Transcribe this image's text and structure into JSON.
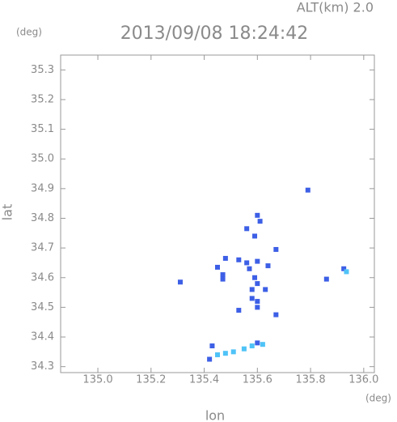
{
  "chart_data": {
    "type": "scatter",
    "title": "2013/09/08 18:24:42",
    "subtitle": "ALT(km) 2.0",
    "y_unit": "(deg)",
    "x_unit": "(deg)",
    "x_label": "lon",
    "y_label": "lat",
    "xlim": [
      134.86,
      136.04
    ],
    "ylim": [
      34.28,
      35.35
    ],
    "xticks": [
      {
        "value": 135,
        "label": "135.0"
      },
      135.2,
      135.4,
      135.6,
      135.8,
      {
        "value": 136,
        "label": "136.0"
      }
    ],
    "yticks": [
      34.3,
      34.4,
      34.5,
      34.6,
      34.7,
      34.8,
      34.9,
      {
        "value": 35,
        "label": "35.0"
      },
      35.1,
      35.2,
      35.3
    ],
    "series": [
      {
        "color": "#3d5fe6",
        "x": [
          135.79,
          135.925,
          135.86,
          135.31,
          135.6,
          135.61,
          135.56,
          135.59,
          135.67,
          135.48,
          135.53,
          135.56,
          135.6,
          135.64,
          135.45,
          135.47,
          135.47,
          135.57,
          135.59,
          135.6,
          135.58,
          135.63,
          135.6,
          135.6,
          135.58,
          135.53,
          135.67,
          135.6,
          135.43,
          135.42
        ],
        "y": [
          34.895,
          34.63,
          34.595,
          34.585,
          34.81,
          34.79,
          34.765,
          34.74,
          34.695,
          34.665,
          34.66,
          34.65,
          34.655,
          34.64,
          34.635,
          34.61,
          34.595,
          34.63,
          34.6,
          34.58,
          34.56,
          34.56,
          34.52,
          34.5,
          34.53,
          34.49,
          34.475,
          34.38,
          34.37,
          34.325
        ]
      },
      {
        "color": "#4fc3f7",
        "x": [
          135.935,
          135.45,
          135.48,
          135.51,
          135.55,
          135.58,
          135.62
        ],
        "y": [
          34.62,
          34.34,
          34.345,
          34.35,
          34.36,
          34.37,
          34.375
        ]
      }
    ]
  }
}
